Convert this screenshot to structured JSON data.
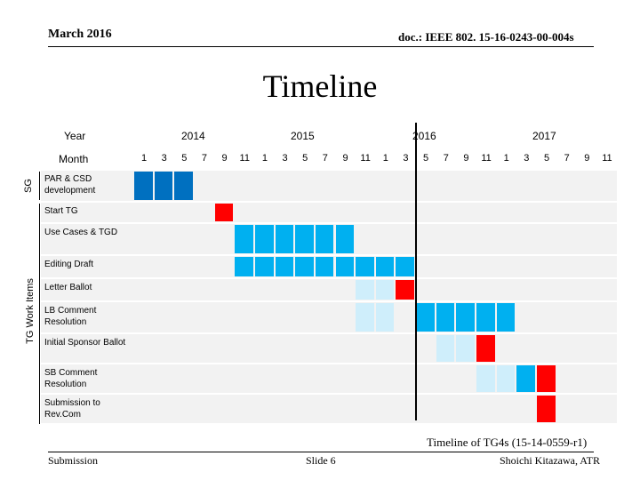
{
  "header": {
    "date": "March 2016",
    "doc": "doc.: IEEE 802. 15-16-0243-00-004s"
  },
  "title": "Timeline",
  "axis": {
    "year_label": "Year",
    "month_label": "Month",
    "years": [
      "2014",
      "2015",
      "2016",
      "2017"
    ],
    "months": [
      "1",
      "3",
      "5",
      "7",
      "9",
      "11",
      "1",
      "3",
      "5",
      "7",
      "9",
      "11",
      "1",
      "3",
      "5",
      "7",
      "9",
      "11",
      "1",
      "3",
      "5",
      "7",
      "9",
      "11"
    ]
  },
  "group_labels": {
    "sg": "SG",
    "tg": "TG Work Items"
  },
  "colors": {
    "dark_blue": "#0070c0",
    "blue": "#00b0f0",
    "light_blue": "#cfeefb",
    "red": "#ff0000",
    "row_bg": "#f2f2f2"
  },
  "tasks": [
    {
      "label": "PAR & CSD development",
      "cells": [
        {
          "from": 0,
          "to": 2,
          "color": "dark_blue"
        }
      ]
    },
    {
      "label": "Start TG",
      "cells": [
        {
          "from": 4,
          "to": 4,
          "color": "red"
        }
      ]
    },
    {
      "label": "Use Cases & TGD",
      "cells": [
        {
          "from": 5,
          "to": 10,
          "color": "blue"
        }
      ]
    },
    {
      "label": "Editing Draft",
      "cells": [
        {
          "from": 5,
          "to": 13,
          "color": "blue"
        }
      ]
    },
    {
      "label": "Letter Ballot",
      "cells": [
        {
          "from": 11,
          "to": 12,
          "color": "light_blue"
        },
        {
          "from": 13,
          "to": 13,
          "color": "red"
        }
      ]
    },
    {
      "label": "LB Comment Resolution",
      "cells": [
        {
          "from": 11,
          "to": 12,
          "color": "light_blue"
        },
        {
          "from": 14,
          "to": 18,
          "color": "blue"
        }
      ]
    },
    {
      "label": "Initial Sponsor Ballot",
      "cells": [
        {
          "from": 15,
          "to": 16,
          "color": "light_blue"
        },
        {
          "from": 17,
          "to": 17,
          "color": "red"
        }
      ]
    },
    {
      "label": "SB Comment Resolution",
      "cells": [
        {
          "from": 17,
          "to": 18,
          "color": "light_blue"
        },
        {
          "from": 19,
          "to": 19,
          "color": "blue"
        },
        {
          "from": 20,
          "to": 20,
          "color": "red"
        }
      ]
    },
    {
      "label": "Submission to Rev.Com",
      "cells": [
        {
          "from": 20,
          "to": 20,
          "color": "red"
        }
      ]
    }
  ],
  "caption": "Timeline of TG4s (15-14-0559-r1)",
  "footer": {
    "left": "Submission",
    "center": "Slide 6",
    "right": "Shoichi Kitazawa, ATR"
  }
}
